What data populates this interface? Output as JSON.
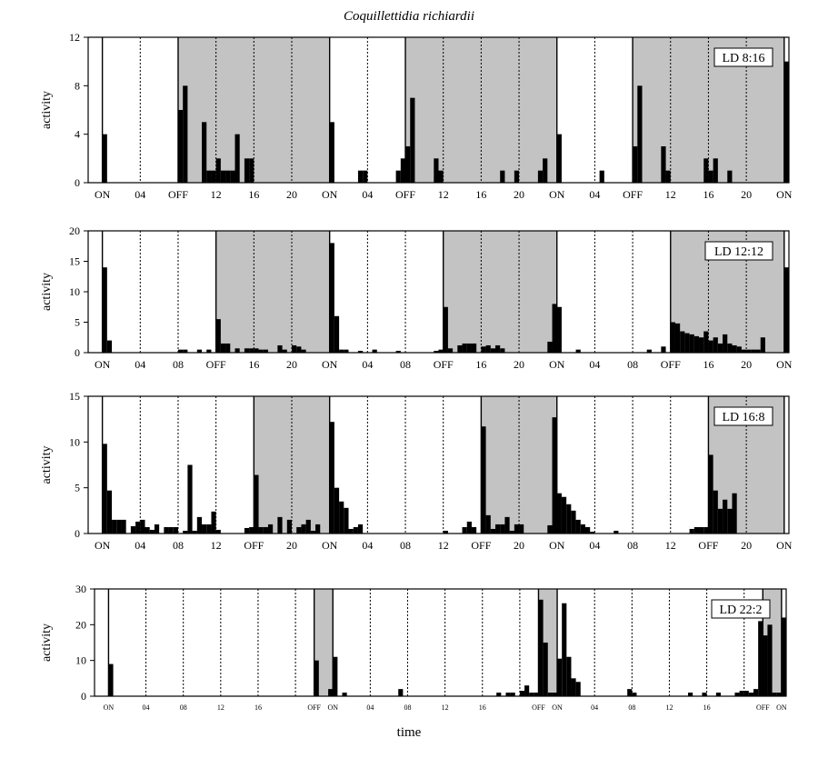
{
  "figure": {
    "title": "Coquillettidia richiardii",
    "xlabel": "time"
  },
  "colors": {
    "dark_shading": "#c3c3c3",
    "bars": "#000000",
    "axes": "#000000",
    "background": "#ffffff"
  },
  "chart_data": [
    {
      "type": "bar",
      "panel": "LD 8:16",
      "legend": "LD 8:16",
      "legend_position": "top-right",
      "ylabel": "activity",
      "ylim": [
        0,
        12
      ],
      "yticks": [
        0,
        4,
        8,
        12
      ],
      "x_unit": "hours",
      "xlim": [
        -1.5,
        72.5
      ],
      "tick_hours": [
        0,
        4,
        8,
        12,
        16,
        20,
        24,
        28,
        32,
        36,
        40,
        44,
        48,
        52,
        56,
        60,
        64,
        68,
        72
      ],
      "tick_labels": [
        "ON",
        "04",
        "OFF",
        "12",
        "16",
        "20",
        "ON",
        "04",
        "OFF",
        "12",
        "16",
        "20",
        "ON",
        "04",
        "OFF",
        "12",
        "16",
        "20",
        "ON"
      ],
      "dark_periods": [
        [
          8,
          24
        ],
        [
          32,
          48
        ],
        [
          56,
          72
        ]
      ],
      "bar_width": 0.5,
      "bars": [
        [
          0,
          4
        ],
        [
          8,
          6
        ],
        [
          8.5,
          8
        ],
        [
          10.5,
          5
        ],
        [
          11,
          1
        ],
        [
          11.5,
          1
        ],
        [
          12,
          2
        ],
        [
          12.5,
          1
        ],
        [
          13,
          1
        ],
        [
          13.5,
          1
        ],
        [
          14,
          4
        ],
        [
          15,
          2
        ],
        [
          15.5,
          2
        ],
        [
          24,
          5
        ],
        [
          27,
          1
        ],
        [
          27.5,
          1
        ],
        [
          31,
          1
        ],
        [
          31.5,
          2
        ],
        [
          32,
          3
        ],
        [
          32.5,
          7
        ],
        [
          35,
          2
        ],
        [
          35.5,
          1
        ],
        [
          42,
          1
        ],
        [
          43.5,
          1
        ],
        [
          46,
          1
        ],
        [
          46.5,
          2
        ],
        [
          48,
          4
        ],
        [
          52.5,
          1
        ],
        [
          56,
          3
        ],
        [
          56.5,
          8
        ],
        [
          59,
          3
        ],
        [
          59.5,
          1
        ],
        [
          63.5,
          2
        ],
        [
          64,
          1
        ],
        [
          64.5,
          2
        ],
        [
          66,
          1
        ],
        [
          72,
          10
        ]
      ]
    },
    {
      "type": "bar",
      "panel": "LD 12:12",
      "legend": "LD 12:12",
      "legend_position": "top-right",
      "ylabel": "activity",
      "ylim": [
        0,
        20
      ],
      "yticks": [
        0,
        5,
        10,
        15,
        20
      ],
      "x_unit": "hours",
      "xlim": [
        -1.5,
        72.5
      ],
      "tick_hours": [
        0,
        4,
        8,
        12,
        16,
        20,
        24,
        28,
        32,
        36,
        40,
        44,
        48,
        52,
        56,
        60,
        64,
        68,
        72
      ],
      "tick_labels": [
        "ON",
        "04",
        "08",
        "OFF",
        "16",
        "20",
        "ON",
        "04",
        "08",
        "OFF",
        "16",
        "20",
        "ON",
        "04",
        "08",
        "OFF",
        "16",
        "20",
        "ON"
      ],
      "dark_periods": [
        [
          12,
          24
        ],
        [
          36,
          48
        ],
        [
          60,
          72
        ]
      ],
      "bar_width": 0.5,
      "bars": [
        [
          0,
          14
        ],
        [
          0.5,
          2
        ],
        [
          8,
          0.5
        ],
        [
          8.5,
          0.5
        ],
        [
          10,
          0.5
        ],
        [
          11,
          0.5
        ],
        [
          12,
          5.5
        ],
        [
          12.5,
          1.5
        ],
        [
          13,
          1.5
        ],
        [
          14,
          0.7
        ],
        [
          15,
          0.7
        ],
        [
          15.5,
          0.7
        ],
        [
          16,
          0.7
        ],
        [
          16.5,
          0.5
        ],
        [
          17,
          0.5
        ],
        [
          18.5,
          1.2
        ],
        [
          19,
          0.5
        ],
        [
          20,
          1.2
        ],
        [
          20.5,
          1
        ],
        [
          21,
          0.5
        ],
        [
          24,
          18
        ],
        [
          24.5,
          6
        ],
        [
          25,
          0.5
        ],
        [
          25.5,
          0.5
        ],
        [
          27,
          0.3
        ],
        [
          28.5,
          0.5
        ],
        [
          31,
          0.3
        ],
        [
          35,
          0.3
        ],
        [
          35.5,
          0.5
        ],
        [
          36,
          7.5
        ],
        [
          36.5,
          0.7
        ],
        [
          37.5,
          1.2
        ],
        [
          38,
          1.5
        ],
        [
          38.5,
          1.5
        ],
        [
          39,
          1.5
        ],
        [
          40,
          1
        ],
        [
          40.5,
          1.2
        ],
        [
          41,
          0.7
        ],
        [
          41.5,
          1.2
        ],
        [
          42,
          0.7
        ],
        [
          47,
          1.8
        ],
        [
          47.5,
          8
        ],
        [
          48,
          7.5
        ],
        [
          50,
          0.5
        ],
        [
          57.5,
          0.5
        ],
        [
          59,
          1
        ],
        [
          60,
          5
        ],
        [
          60.5,
          4.8
        ],
        [
          61,
          3.5
        ],
        [
          61.5,
          3.2
        ],
        [
          62,
          3
        ],
        [
          62.5,
          2.7
        ],
        [
          63,
          2.5
        ],
        [
          63.5,
          3.5
        ],
        [
          64,
          2
        ],
        [
          64.5,
          2.5
        ],
        [
          65,
          1.5
        ],
        [
          65.5,
          3
        ],
        [
          66,
          1.5
        ],
        [
          66.5,
          1.2
        ],
        [
          67,
          1
        ],
        [
          67.5,
          0.5
        ],
        [
          68,
          0.5
        ],
        [
          68.5,
          0.5
        ],
        [
          69,
          0.5
        ],
        [
          69.5,
          2.5
        ],
        [
          72,
          14
        ]
      ]
    },
    {
      "type": "bar",
      "panel": "LD 16:8",
      "legend": "LD 16:8",
      "legend_position": "top-right",
      "ylabel": "activity",
      "ylim": [
        0,
        15
      ],
      "yticks": [
        0,
        5,
        10,
        15
      ],
      "x_unit": "hours",
      "xlim": [
        -1.5,
        72.5
      ],
      "tick_hours": [
        0,
        4,
        8,
        12,
        16,
        20,
        24,
        28,
        32,
        36,
        40,
        44,
        48,
        52,
        56,
        60,
        64,
        68,
        72
      ],
      "tick_labels": [
        "ON",
        "04",
        "08",
        "12",
        "OFF",
        "20",
        "ON",
        "04",
        "08",
        "12",
        "OFF",
        "20",
        "ON",
        "04",
        "08",
        "12",
        "OFF",
        "20",
        "ON"
      ],
      "dark_periods": [
        [
          16,
          24
        ],
        [
          40,
          48
        ],
        [
          64,
          72
        ]
      ],
      "bar_width": 0.5,
      "bars": [
        [
          0,
          9.8
        ],
        [
          0.5,
          4.7
        ],
        [
          1,
          1.5
        ],
        [
          1.5,
          1.5
        ],
        [
          2,
          1.5
        ],
        [
          3,
          0.8
        ],
        [
          3.5,
          1.3
        ],
        [
          4,
          1.5
        ],
        [
          4.5,
          0.7
        ],
        [
          5,
          0.4
        ],
        [
          5.5,
          1
        ],
        [
          6.5,
          0.7
        ],
        [
          7,
          0.7
        ],
        [
          7.5,
          0.7
        ],
        [
          8.5,
          0.3
        ],
        [
          9,
          7.5
        ],
        [
          9.5,
          0.3
        ],
        [
          10,
          1.8
        ],
        [
          10.5,
          1
        ],
        [
          11,
          1
        ],
        [
          11.5,
          2.4
        ],
        [
          12,
          0.4
        ],
        [
          15,
          0.6
        ],
        [
          15.5,
          0.7
        ],
        [
          16,
          6.4
        ],
        [
          16.5,
          0.7
        ],
        [
          17,
          0.7
        ],
        [
          17.5,
          1
        ],
        [
          18.5,
          1.8
        ],
        [
          19.5,
          1.5
        ],
        [
          20.5,
          0.7
        ],
        [
          21,
          1
        ],
        [
          21.5,
          1.5
        ],
        [
          22,
          0.3
        ],
        [
          22.5,
          1
        ],
        [
          24,
          12.2
        ],
        [
          24.5,
          5
        ],
        [
          25,
          3.5
        ],
        [
          25.5,
          2.8
        ],
        [
          26,
          0.5
        ],
        [
          26.5,
          0.7
        ],
        [
          27,
          1
        ],
        [
          36,
          0.3
        ],
        [
          38,
          0.7
        ],
        [
          38.5,
          1.3
        ],
        [
          39,
          0.7
        ],
        [
          40,
          11.7
        ],
        [
          40.5,
          2
        ],
        [
          41,
          0.5
        ],
        [
          41.5,
          1
        ],
        [
          42,
          1
        ],
        [
          42.5,
          1.8
        ],
        [
          43,
          0.3
        ],
        [
          43.5,
          1
        ],
        [
          44,
          1
        ],
        [
          47,
          0.9
        ],
        [
          47.5,
          12.7
        ],
        [
          48,
          4.4
        ],
        [
          48.5,
          4
        ],
        [
          49,
          3.2
        ],
        [
          49.5,
          2.5
        ],
        [
          50,
          1.5
        ],
        [
          50.5,
          1
        ],
        [
          51,
          0.7
        ],
        [
          51.5,
          0.2
        ],
        [
          54,
          0.3
        ],
        [
          62,
          0.5
        ],
        [
          62.5,
          0.7
        ],
        [
          63,
          0.7
        ],
        [
          63.5,
          0.7
        ],
        [
          64,
          8.6
        ],
        [
          64.5,
          4.7
        ],
        [
          65,
          2.7
        ],
        [
          65.5,
          3.7
        ],
        [
          66,
          2.7
        ],
        [
          66.5,
          4.4
        ]
      ]
    },
    {
      "type": "bar",
      "panel": "LD 22:2",
      "legend": "LD 22:2",
      "legend_position": "top-right",
      "ylabel": "activity",
      "ylim": [
        0,
        30
      ],
      "yticks": [
        0,
        10,
        20,
        30
      ],
      "x_unit": "hours",
      "xlim": [
        -1.5,
        72.5
      ],
      "tick_hours": [
        0,
        4,
        8,
        12,
        16,
        20,
        22,
        24,
        28,
        32,
        36,
        40,
        44,
        46,
        48,
        52,
        56,
        60,
        64,
        68,
        70,
        72
      ],
      "tick_labels": [
        "ON",
        "04",
        "08",
        "12",
        "16",
        "",
        "OFF",
        "ON",
        "04",
        "08",
        "12",
        "16",
        "",
        "OFF",
        "ON",
        "04",
        "08",
        "12",
        "16",
        "",
        "OFF",
        "ON"
      ],
      "dark_periods": [
        [
          22,
          24
        ],
        [
          46,
          48
        ],
        [
          70,
          72
        ]
      ],
      "bar_width": 0.5,
      "bars": [
        [
          0,
          9
        ],
        [
          22,
          10
        ],
        [
          23.5,
          2
        ],
        [
          24,
          11
        ],
        [
          25,
          1
        ],
        [
          31,
          2
        ],
        [
          41.5,
          1
        ],
        [
          42.5,
          1
        ],
        [
          43,
          1
        ],
        [
          44,
          1.5
        ],
        [
          44.5,
          3
        ],
        [
          45,
          1
        ],
        [
          45.5,
          1
        ],
        [
          46,
          27
        ],
        [
          46.5,
          15
        ],
        [
          47,
          1
        ],
        [
          47.5,
          1
        ],
        [
          48,
          10.5
        ],
        [
          48.5,
          26
        ],
        [
          49,
          11
        ],
        [
          49.5,
          5
        ],
        [
          50,
          4
        ],
        [
          55.5,
          2
        ],
        [
          56,
          1
        ],
        [
          62,
          1
        ],
        [
          63.5,
          1
        ],
        [
          65,
          1
        ],
        [
          67,
          1
        ],
        [
          67.5,
          1.5
        ],
        [
          68,
          1.5
        ],
        [
          68.5,
          1
        ],
        [
          69,
          2
        ],
        [
          69.5,
          21
        ],
        [
          70,
          17
        ],
        [
          70.5,
          20
        ],
        [
          71,
          1
        ],
        [
          71.5,
          1
        ],
        [
          72,
          22
        ]
      ]
    }
  ]
}
